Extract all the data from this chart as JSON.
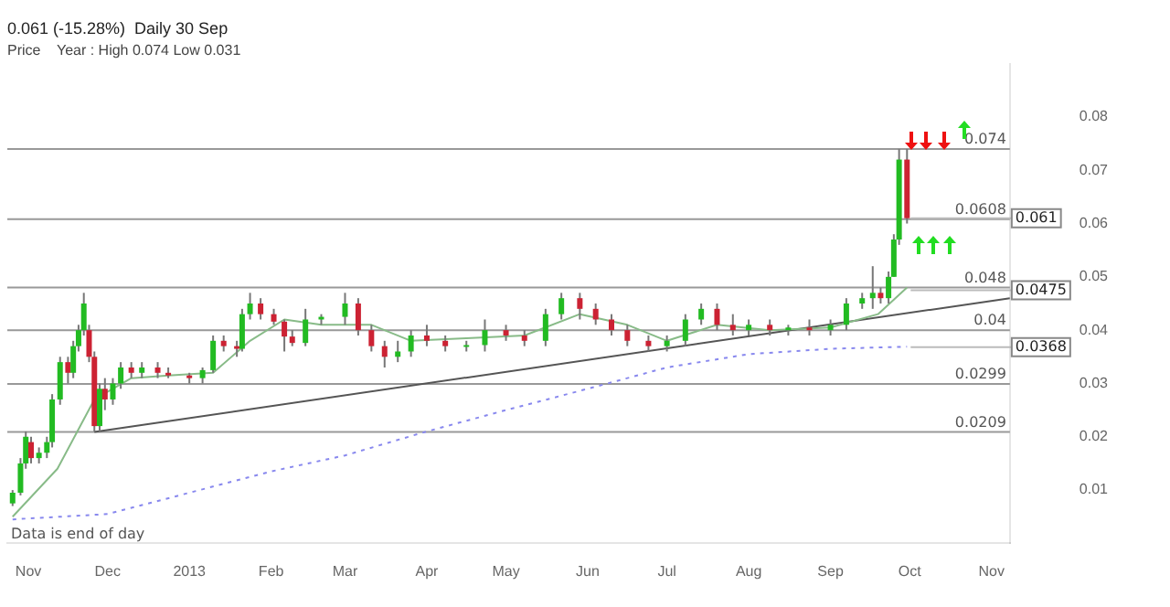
{
  "chart_data": {
    "type": "candlestick",
    "title": "0.061 (-15.28%)  Daily 30 Sep",
    "subtitle": "Price    Year : High 0.074 Low 0.031",
    "x": [
      "2012-10-26",
      "2012-10-29",
      "2012-10-31",
      "2012-11-02",
      "2012-11-05",
      "2012-11-08",
      "2012-11-10",
      "2012-11-13",
      "2012-11-16",
      "2012-11-18",
      "2012-11-20",
      "2012-11-22",
      "2012-11-24",
      "2012-11-26",
      "2012-11-28",
      "2012-11-30",
      "2012-12-03",
      "2012-12-06",
      "2012-12-10",
      "2012-12-14",
      "2012-12-20",
      "2012-12-24",
      "2013-01-01",
      "2013-01-06",
      "2013-01-10",
      "2013-01-14",
      "2013-01-19",
      "2013-01-21",
      "2013-01-24",
      "2013-01-28",
      "2013-02-02",
      "2013-02-06",
      "2013-02-09",
      "2013-02-14",
      "2013-02-20",
      "2013-03-01",
      "2013-03-06",
      "2013-03-11",
      "2013-03-16",
      "2013-03-21",
      "2013-03-26",
      "2013-04-01",
      "2013-04-08",
      "2013-04-16",
      "2013-04-23",
      "2013-05-01",
      "2013-05-08",
      "2013-05-16",
      "2013-05-22",
      "2013-05-29",
      "2013-06-04",
      "2013-06-10",
      "2013-06-16",
      "2013-06-24",
      "2013-07-01",
      "2013-07-08",
      "2013-07-14",
      "2013-07-20",
      "2013-07-26",
      "2013-08-01",
      "2013-08-09",
      "2013-08-16",
      "2013-08-24",
      "2013-09-01",
      "2013-09-07",
      "2013-09-13",
      "2013-09-17",
      "2013-09-20",
      "2013-09-23",
      "2013-09-25",
      "2013-09-27",
      "2013-09-30"
    ],
    "ohlc": [
      [
        0.0075,
        0.01,
        0.007,
        0.0095
      ],
      [
        0.0095,
        0.016,
        0.009,
        0.015
      ],
      [
        0.015,
        0.021,
        0.014,
        0.02
      ],
      [
        0.019,
        0.02,
        0.015,
        0.016
      ],
      [
        0.016,
        0.018,
        0.015,
        0.017
      ],
      [
        0.017,
        0.02,
        0.016,
        0.019
      ],
      [
        0.019,
        0.028,
        0.018,
        0.027
      ],
      [
        0.027,
        0.035,
        0.026,
        0.034
      ],
      [
        0.034,
        0.035,
        0.03,
        0.032
      ],
      [
        0.032,
        0.038,
        0.031,
        0.037
      ],
      [
        0.037,
        0.041,
        0.036,
        0.04
      ],
      [
        0.04,
        0.047,
        0.039,
        0.045
      ],
      [
        0.04,
        0.041,
        0.034,
        0.035
      ],
      [
        0.035,
        0.036,
        0.021,
        0.022
      ],
      [
        0.022,
        0.03,
        0.021,
        0.029
      ],
      [
        0.029,
        0.031,
        0.025,
        0.027
      ],
      [
        0.027,
        0.031,
        0.026,
        0.03
      ],
      [
        0.03,
        0.034,
        0.029,
        0.033
      ],
      [
        0.033,
        0.034,
        0.031,
        0.032
      ],
      [
        0.032,
        0.034,
        0.031,
        0.033
      ],
      [
        0.033,
        0.034,
        0.031,
        0.032
      ],
      [
        0.032,
        0.033,
        0.031,
        0.0315
      ],
      [
        0.0315,
        0.032,
        0.03,
        0.031
      ],
      [
        0.031,
        0.033,
        0.03,
        0.0325
      ],
      [
        0.0325,
        0.039,
        0.032,
        0.038
      ],
      [
        0.038,
        0.039,
        0.036,
        0.037
      ],
      [
        0.037,
        0.038,
        0.035,
        0.0365
      ],
      [
        0.0365,
        0.044,
        0.036,
        0.043
      ],
      [
        0.043,
        0.047,
        0.042,
        0.045
      ],
      [
        0.045,
        0.046,
        0.042,
        0.043
      ],
      [
        0.043,
        0.044,
        0.041,
        0.0416
      ],
      [
        0.0416,
        0.042,
        0.036,
        0.0388
      ],
      [
        0.0388,
        0.04,
        0.037,
        0.0376
      ],
      [
        0.0376,
        0.044,
        0.037,
        0.042
      ],
      [
        0.042,
        0.043,
        0.041,
        0.0425
      ],
      [
        0.0425,
        0.047,
        0.041,
        0.045
      ],
      [
        0.045,
        0.046,
        0.039,
        0.04
      ],
      [
        0.04,
        0.041,
        0.036,
        0.037
      ],
      [
        0.037,
        0.038,
        0.033,
        0.035
      ],
      [
        0.035,
        0.038,
        0.034,
        0.036
      ],
      [
        0.036,
        0.04,
        0.035,
        0.039
      ],
      [
        0.039,
        0.041,
        0.037,
        0.038
      ],
      [
        0.038,
        0.039,
        0.036,
        0.037
      ],
      [
        0.037,
        0.038,
        0.036,
        0.0372
      ],
      [
        0.0372,
        0.042,
        0.036,
        0.04
      ],
      [
        0.04,
        0.041,
        0.038,
        0.039
      ],
      [
        0.039,
        0.04,
        0.037,
        0.038
      ],
      [
        0.038,
        0.044,
        0.037,
        0.043
      ],
      [
        0.043,
        0.047,
        0.042,
        0.046
      ],
      [
        0.046,
        0.047,
        0.042,
        0.044
      ],
      [
        0.044,
        0.045,
        0.041,
        0.042
      ],
      [
        0.042,
        0.043,
        0.039,
        0.04
      ],
      [
        0.04,
        0.041,
        0.037,
        0.038
      ],
      [
        0.038,
        0.039,
        0.036,
        0.037
      ],
      [
        0.037,
        0.039,
        0.036,
        0.038
      ],
      [
        0.038,
        0.043,
        0.037,
        0.042
      ],
      [
        0.042,
        0.045,
        0.041,
        0.044
      ],
      [
        0.044,
        0.045,
        0.04,
        0.041
      ],
      [
        0.041,
        0.043,
        0.039,
        0.04
      ],
      [
        0.04,
        0.042,
        0.039,
        0.041
      ],
      [
        0.041,
        0.042,
        0.039,
        0.04
      ],
      [
        0.04,
        0.041,
        0.039,
        0.0405
      ],
      [
        0.0405,
        0.042,
        0.039,
        0.04
      ],
      [
        0.04,
        0.042,
        0.039,
        0.041
      ],
      [
        0.041,
        0.046,
        0.04,
        0.045
      ],
      [
        0.045,
        0.047,
        0.044,
        0.046
      ],
      [
        0.046,
        0.052,
        0.044,
        0.047
      ],
      [
        0.047,
        0.048,
        0.045,
        0.046
      ],
      [
        0.046,
        0.051,
        0.045,
        0.05
      ],
      [
        0.05,
        0.058,
        0.05,
        0.057
      ],
      [
        0.057,
        0.074,
        0.056,
        0.072
      ],
      [
        0.072,
        0.074,
        0.06,
        0.061
      ]
    ],
    "series": [
      {
        "type": "line",
        "color": "#88bb88",
        "line_style": "solid",
        "x": [
          "2012-10-26",
          "2012-11-12",
          "2012-11-26",
          "2012-12-10",
          "2012-12-24",
          "2013-01-10",
          "2013-01-24",
          "2013-02-06",
          "2013-02-20",
          "2013-03-11",
          "2013-03-26",
          "2013-04-16",
          "2013-05-08",
          "2013-05-29",
          "2013-06-16",
          "2013-07-01",
          "2013-07-20",
          "2013-08-09",
          "2013-09-01",
          "2013-09-19",
          "2013-09-30"
        ],
        "values": [
          0.005,
          0.014,
          0.027,
          0.031,
          0.0315,
          0.032,
          0.038,
          0.042,
          0.041,
          0.041,
          0.038,
          0.0385,
          0.039,
          0.043,
          0.041,
          0.038,
          0.041,
          0.04,
          0.0405,
          0.043,
          0.048
        ]
      },
      {
        "type": "line",
        "color": "#8888ee",
        "line_style": "dotted",
        "x": [
          "2012-10-26",
          "2012-12-01",
          "2013-01-01",
          "2013-02-01",
          "2013-03-01",
          "2013-04-01",
          "2013-05-01",
          "2013-06-01",
          "2013-07-01",
          "2013-08-01",
          "2013-09-01",
          "2013-09-30"
        ],
        "values": [
          0.0045,
          0.0055,
          0.0095,
          0.0135,
          0.0165,
          0.021,
          0.025,
          0.029,
          0.033,
          0.0355,
          0.0365,
          0.0369
        ]
      },
      {
        "type": "line",
        "color": "#555555",
        "line_style": "solid",
        "x": [
          "2012-11-26",
          "2013-11-08"
        ],
        "values": [
          0.0209,
          0.046
        ]
      }
    ],
    "xlim": [
      "2012-10-24",
      "2013-11-08"
    ],
    "xticks": [
      {
        "value": "2012-11-01",
        "label": "Nov"
      },
      {
        "value": "2012-12-01",
        "label": "Dec"
      },
      {
        "value": "2013-01-01",
        "label": "2013"
      },
      {
        "value": "2013-02-01",
        "label": "Feb"
      },
      {
        "value": "2013-03-01",
        "label": "Mar"
      },
      {
        "value": "2013-04-01",
        "label": "Apr"
      },
      {
        "value": "2013-05-01",
        "label": "May"
      },
      {
        "value": "2013-06-01",
        "label": "Jun"
      },
      {
        "value": "2013-07-01",
        "label": "Jul"
      },
      {
        "value": "2013-08-01",
        "label": "Aug"
      },
      {
        "value": "2013-09-01",
        "label": "Sep"
      },
      {
        "value": "2013-10-01",
        "label": "Oct"
      },
      {
        "value": "2013-11-01",
        "label": "Nov"
      }
    ],
    "ylim": [
      0,
      0.09
    ],
    "yticks": [
      0.01,
      0.02,
      0.03,
      0.04,
      0.05,
      0.06,
      0.07,
      0.08
    ],
    "ref_lines": [
      {
        "axis": "y",
        "value": 0.074,
        "label": "0.074",
        "color": "#999999"
      },
      {
        "axis": "y",
        "value": 0.0608,
        "label": "0.0608",
        "color": "#999999"
      },
      {
        "axis": "y",
        "value": 0.048,
        "label": "0.048",
        "color": "#999999"
      },
      {
        "axis": "y",
        "value": 0.04,
        "label": "0.04",
        "color": "#999999"
      },
      {
        "axis": "y",
        "value": 0.0299,
        "label": "0.0299",
        "color": "#999999"
      },
      {
        "axis": "y",
        "value": 0.0209,
        "label": "0.0209",
        "color": "#999999"
      }
    ],
    "annotations": [
      "Data is end of day",
      {
        "text": "0.061",
        "x": "2013-09-30",
        "y": 0.061
      },
      {
        "text": "0.0475",
        "x": "2013-09-30",
        "y": 0.0475
      },
      {
        "text": "0.0368",
        "x": "2013-09-30",
        "y": 0.0368
      }
    ],
    "grid": false,
    "legend": false
  }
}
